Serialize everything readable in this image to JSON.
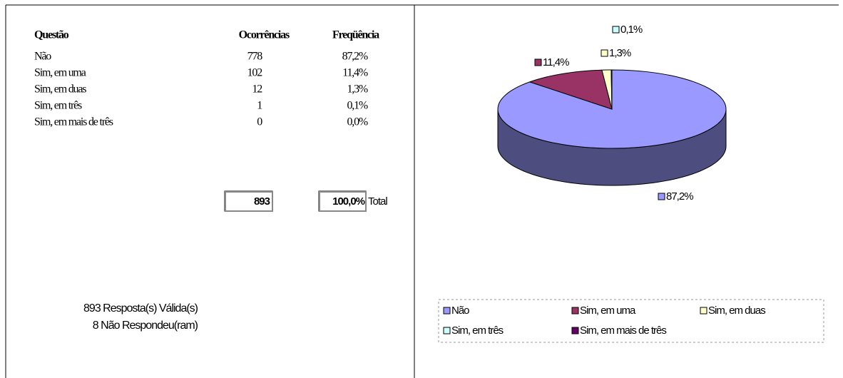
{
  "table": {
    "headers": [
      "Questão",
      "Ocorrências",
      "Freqüência"
    ],
    "rows": [
      [
        "Não",
        778,
        "87,2%"
      ],
      [
        "Sim, em uma",
        102,
        "11,4%"
      ],
      [
        "Sim, em duas",
        12,
        "1,3%"
      ],
      [
        "Sim, em três",
        1,
        "0,1%"
      ],
      [
        "Sim, em mais de três",
        0,
        "0,0%"
      ]
    ],
    "total": {
      "count": 893,
      "frequency": "100,0%",
      "label": "Total"
    }
  },
  "summary": [
    "893 Resposta(s) Válida(s)",
    "8 Não Respondeu(ram)"
  ],
  "chart_data": {
    "type": "pie",
    "categories": [
      "Não",
      "Sim, em uma",
      "Sim, em duas",
      "Sim, em três",
      "Sim, em mais de três"
    ],
    "values": [
      87.2,
      11.4,
      1.3,
      0.1,
      0.0
    ],
    "value_labels": [
      "87,2%",
      "11,4%",
      "1,3%",
      "0,1%",
      null
    ],
    "colors": [
      "#9999ff",
      "#993366",
      "#ffffcc",
      "#ccffff",
      "#660066"
    ]
  }
}
